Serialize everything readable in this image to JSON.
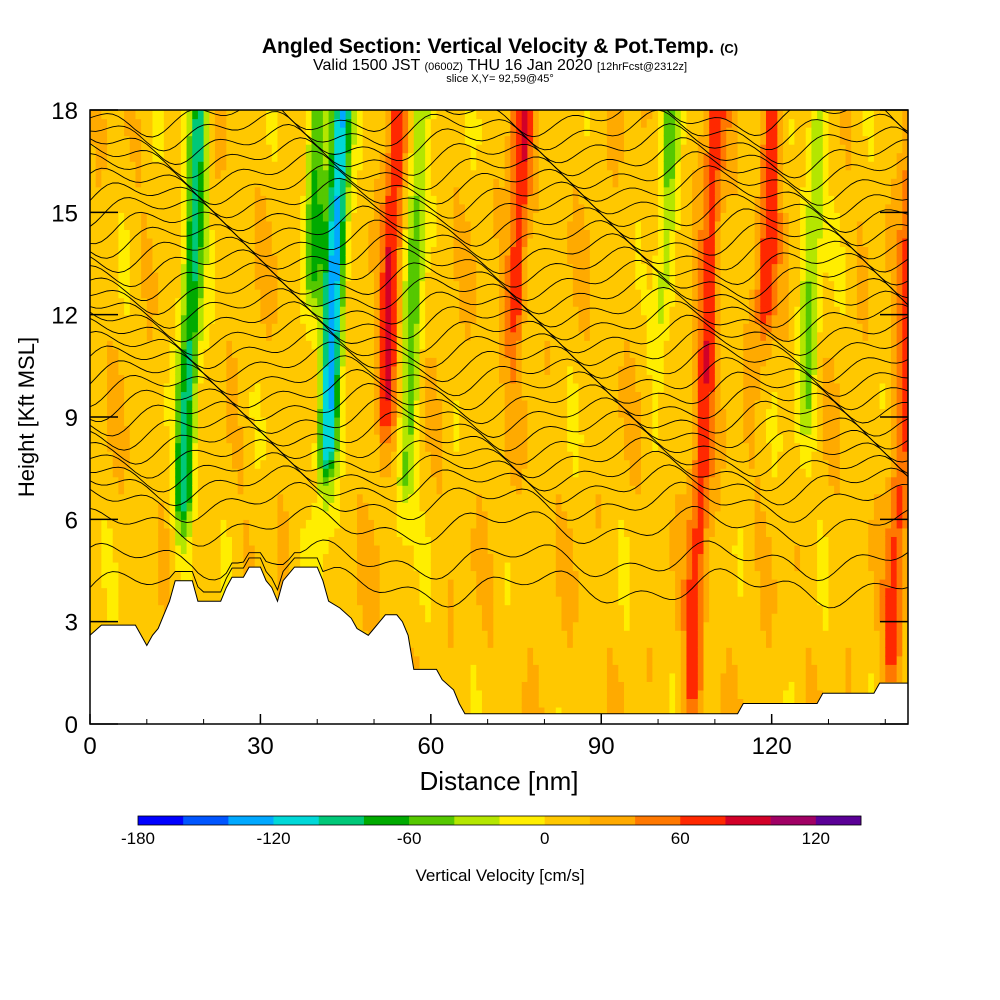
{
  "title": {
    "main": "Angled Section: Vertical Velocity & Pot.Temp.",
    "main_suffix": "(C)",
    "valid_prefix": "Valid 1500 JST",
    "valid_utc": "(0600Z)",
    "valid_date": "THU 16 Jan 2020",
    "forecast": "[12hrFcst@2312z]",
    "slice": "slice X,Y= 92,59@45°"
  },
  "chart_data": {
    "type": "heatmap",
    "xlabel": "Distance [nm]",
    "ylabel": "Height [Kft MSL]",
    "xlim": [
      0,
      144
    ],
    "ylim": [
      0,
      18
    ],
    "x_ticks": [
      0,
      30,
      60,
      90,
      120
    ],
    "y_ticks": [
      0,
      3,
      6,
      9,
      12,
      15,
      18
    ],
    "colorbar": {
      "label": "Vertical Velocity [cm/s]",
      "ticks": [
        -180,
        -120,
        -60,
        0,
        60,
        120
      ],
      "range": [
        -180,
        140
      ],
      "step": 20,
      "colors": [
        "#0000ff",
        "#0055ff",
        "#00a8ff",
        "#00d8d8",
        "#00c878",
        "#00aa00",
        "#55c800",
        "#b4e600",
        "#ffee00",
        "#ffc800",
        "#ffaa00",
        "#ff7800",
        "#ff2800",
        "#d20028",
        "#a00064",
        "#5a0096"
      ]
    },
    "contour_field": "Potential Temperature (C)",
    "terrain": [
      [
        0,
        2.6
      ],
      [
        2,
        2.9
      ],
      [
        8,
        2.9
      ],
      [
        9,
        2.6
      ],
      [
        10,
        2.3
      ],
      [
        11,
        2.6
      ],
      [
        12,
        2.8
      ],
      [
        13,
        3.2
      ],
      [
        14,
        3.6
      ],
      [
        15,
        4.2
      ],
      [
        18,
        4.2
      ],
      [
        19,
        3.6
      ],
      [
        23,
        3.6
      ],
      [
        24,
        4.0
      ],
      [
        25,
        4.3
      ],
      [
        27,
        4.3
      ],
      [
        28,
        4.6
      ],
      [
        30,
        4.6
      ],
      [
        31,
        4.2
      ],
      [
        32,
        4.0
      ],
      [
        33,
        3.6
      ],
      [
        34,
        4.2
      ],
      [
        36,
        4.6
      ],
      [
        40,
        4.6
      ],
      [
        41,
        4.2
      ],
      [
        42,
        3.6
      ],
      [
        44,
        3.4
      ],
      [
        46,
        3.1
      ],
      [
        47,
        2.8
      ],
      [
        49,
        2.6
      ],
      [
        50,
        2.8
      ],
      [
        52,
        3.2
      ],
      [
        54,
        3.2
      ],
      [
        55,
        3.0
      ],
      [
        56,
        2.6
      ],
      [
        57,
        1.6
      ],
      [
        61,
        1.6
      ],
      [
        62,
        1.3
      ],
      [
        64,
        1.0
      ],
      [
        65,
        0.6
      ],
      [
        66,
        0.3
      ],
      [
        92,
        0.3
      ],
      [
        100,
        0.3
      ],
      [
        114,
        0.3
      ],
      [
        115,
        0.6
      ],
      [
        120,
        0.6
      ],
      [
        128,
        0.6
      ],
      [
        129,
        0.9
      ],
      [
        138,
        0.9
      ],
      [
        139,
        1.2
      ],
      [
        144,
        1.2
      ]
    ],
    "velocity_features": [
      {
        "x": 17,
        "min_h": 6.5,
        "w": -100
      },
      {
        "x": 42,
        "min_h": 8,
        "w": -140
      },
      {
        "x": 56,
        "min_h": 7,
        "w": -60
      },
      {
        "x": 52,
        "min_h": 9,
        "w": 70
      },
      {
        "x": 74,
        "min_h": 12,
        "w": 70
      },
      {
        "x": 100,
        "min_h": 12,
        "w": -50
      },
      {
        "x": 118,
        "min_h": 12,
        "w": 60
      },
      {
        "x": 126,
        "min_h": 9,
        "w": -50
      },
      {
        "x": 108,
        "min_h": 1,
        "w": 60
      },
      {
        "x": 143,
        "min_h": 2,
        "w": 55
      },
      {
        "x": 38,
        "min_h": 13,
        "w": -70
      }
    ],
    "contour_base_heights": [
      4.0,
      4.8,
      5.8,
      6.5,
      7.0,
      7.4,
      7.8,
      8.2,
      8.6,
      9.0,
      9.4,
      9.8,
      10.2,
      10.6,
      11.0,
      11.4,
      11.8,
      12.2,
      12.6,
      13.0,
      13.4,
      13.8,
      14.2,
      14.6,
      15.0,
      15.4,
      15.8,
      16.2,
      16.6,
      17.0,
      17.4,
      17.8
    ]
  }
}
